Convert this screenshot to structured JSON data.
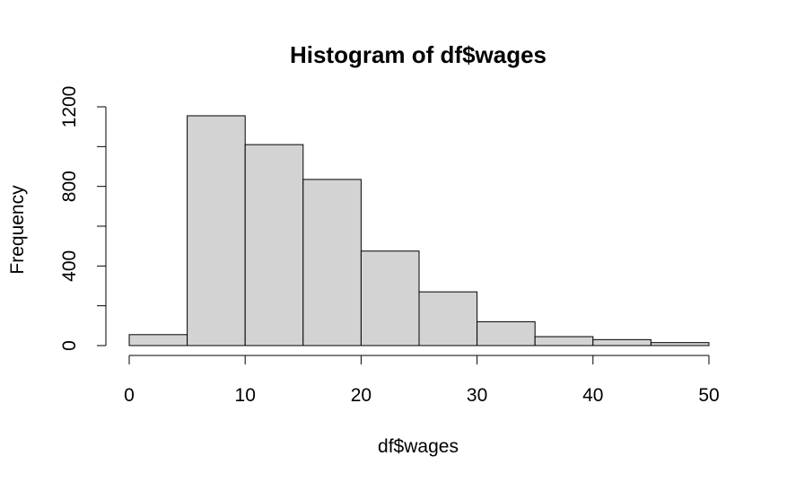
{
  "chart_data": {
    "type": "bar",
    "title": "Histogram of df$wages",
    "xlabel": "df$wages",
    "ylabel": "Frequency",
    "bins": [
      {
        "start": 0,
        "end": 5,
        "count": 55
      },
      {
        "start": 5,
        "end": 10,
        "count": 1155
      },
      {
        "start": 10,
        "end": 15,
        "count": 1010
      },
      {
        "start": 15,
        "end": 20,
        "count": 835
      },
      {
        "start": 20,
        "end": 25,
        "count": 475
      },
      {
        "start": 25,
        "end": 30,
        "count": 270
      },
      {
        "start": 30,
        "end": 35,
        "count": 120
      },
      {
        "start": 35,
        "end": 40,
        "count": 45
      },
      {
        "start": 40,
        "end": 45,
        "count": 30
      },
      {
        "start": 45,
        "end": 50,
        "count": 15
      }
    ],
    "x_ticks": [
      "0",
      "10",
      "20",
      "30",
      "40",
      "50"
    ],
    "y_ticks": [
      "0",
      "400",
      "800",
      "1200"
    ],
    "xlim": [
      0,
      50
    ],
    "ylim": [
      0,
      1200
    ],
    "bar_fill": "#d3d3d3",
    "bar_stroke": "#000000"
  }
}
